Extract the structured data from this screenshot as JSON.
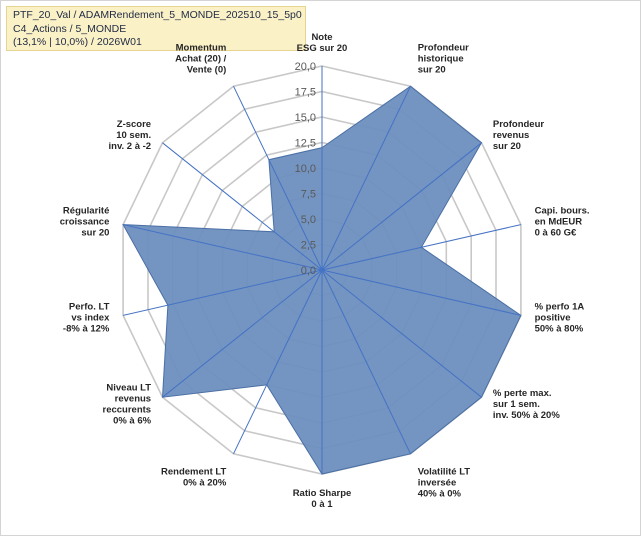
{
  "chart_data": {
    "type": "radar",
    "title_lines": [
      "PTF_20_Val / ADAMRendement_5_MONDE_202510_15_5p0",
      "C4_Actions / 5_MONDE",
      "(13,1% | 10,0%) / 2026W01"
    ],
    "rlim": [
      0,
      20
    ],
    "ticks": [
      "0,0",
      "2,5",
      "5,0",
      "7,5",
      "10,0",
      "12,5",
      "15,0",
      "17,5",
      "20,0"
    ],
    "axes": [
      {
        "label": [
          "Note",
          "ESG sur 20"
        ],
        "value": 12.0
      },
      {
        "label": [
          "Profondeur",
          "historique",
          "sur 20"
        ],
        "value": 20.0
      },
      {
        "label": [
          "Profondeur",
          "revenus",
          "sur 20"
        ],
        "value": 20.0
      },
      {
        "label": [
          "Capi. bours.",
          "en MdEUR",
          "0 à 60 G€"
        ],
        "value": 10.0
      },
      {
        "label": [
          "% perfo 1A",
          "positive",
          "50% à 80%"
        ],
        "value": 20.0
      },
      {
        "label": [
          "% perte max.",
          "sur 1 sem.",
          "inv. 50% à 20%"
        ],
        "value": 20.0
      },
      {
        "label": [
          "Volatilité LT",
          "inversée",
          "40% à 0%"
        ],
        "value": 20.0
      },
      {
        "label": [
          "Ratio Sharpe",
          "0 à 1"
        ],
        "value": 20.0
      },
      {
        "label": [
          "Rendement LT",
          "0% à 20%"
        ],
        "value": 12.5
      },
      {
        "label": [
          "Niveau LT",
          "revenus",
          "reccurents",
          "0% à 6%"
        ],
        "value": 20.0
      },
      {
        "label": [
          "Perfo. LT",
          "vs index",
          "-8% à 12%"
        ],
        "value": 15.5
      },
      {
        "label": [
          "Régularité",
          "croissance",
          "sur 20"
        ],
        "value": 20.0
      },
      {
        "label": [
          "Z-score",
          "10 sem.",
          "inv. 2 à -2"
        ],
        "value": 6.0
      },
      {
        "label": [
          "Momentum",
          "Achat (20) /",
          "Vente (0)"
        ],
        "value": 12.0
      }
    ],
    "colors": {
      "fill": "#6d8fbf",
      "stroke": "#4a6fa5",
      "grid": "#c8c8c8",
      "axis": "#4472c4",
      "momentum_label": "#b8860b"
    }
  }
}
